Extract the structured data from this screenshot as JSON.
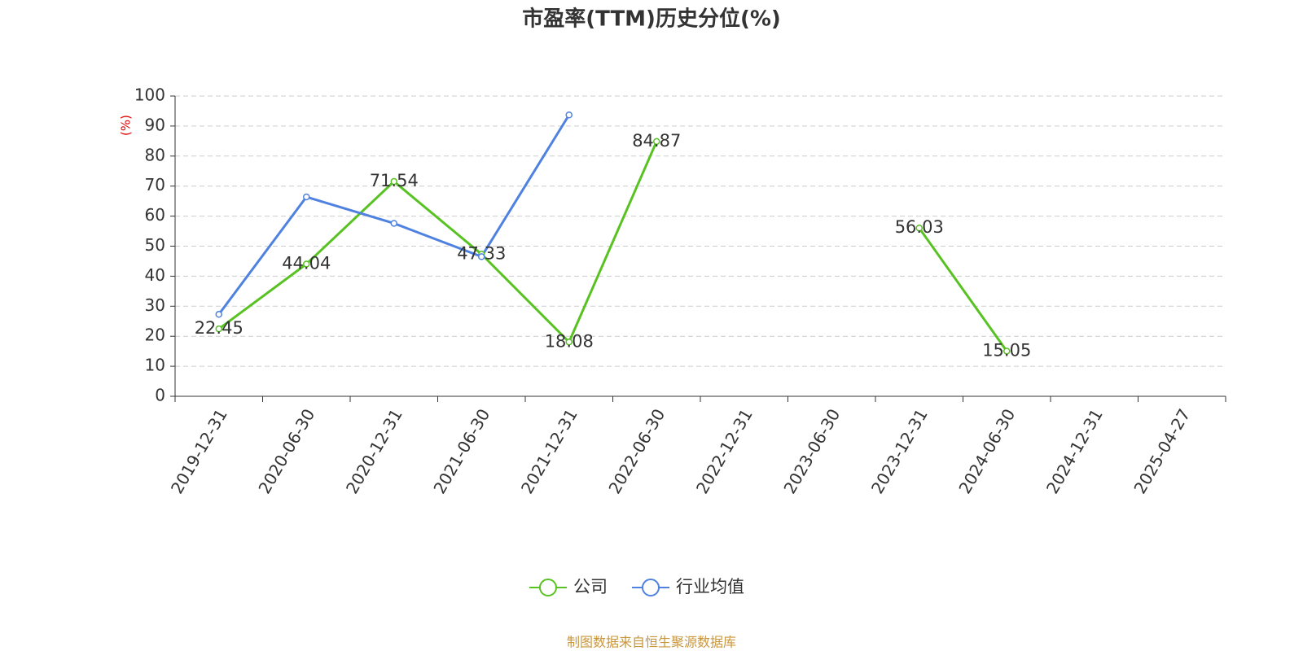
{
  "chart_data": {
    "type": "line",
    "title": "市盈率(TTM)历史分位(%)",
    "y_label": "(%)",
    "source": "制图数据来自恒生聚源数据库",
    "categories": [
      "2019-12-31",
      "2020-06-30",
      "2020-12-31",
      "2021-06-30",
      "2021-12-31",
      "2022-06-30",
      "2022-12-31",
      "2023-06-30",
      "2023-12-31",
      "2024-06-30",
      "2024-12-31",
      "2025-04-27"
    ],
    "series": [
      {
        "name": "公司",
        "color": "#58c222",
        "values": [
          22.45,
          44.04,
          71.54,
          47.33,
          18.08,
          84.87,
          null,
          null,
          56.03,
          15.05,
          null,
          null
        ],
        "show_labels": true
      },
      {
        "name": "行业均值",
        "color": "#4f82e0",
        "values": [
          27.3,
          66.4,
          57.6,
          46.5,
          93.7,
          null,
          null,
          null,
          null,
          null,
          null,
          null
        ],
        "show_labels": false
      }
    ],
    "ylim": [
      0,
      100
    ],
    "yticks": [
      0,
      10,
      20,
      30,
      40,
      50,
      60,
      70,
      80,
      90,
      100
    ],
    "grid": true
  }
}
